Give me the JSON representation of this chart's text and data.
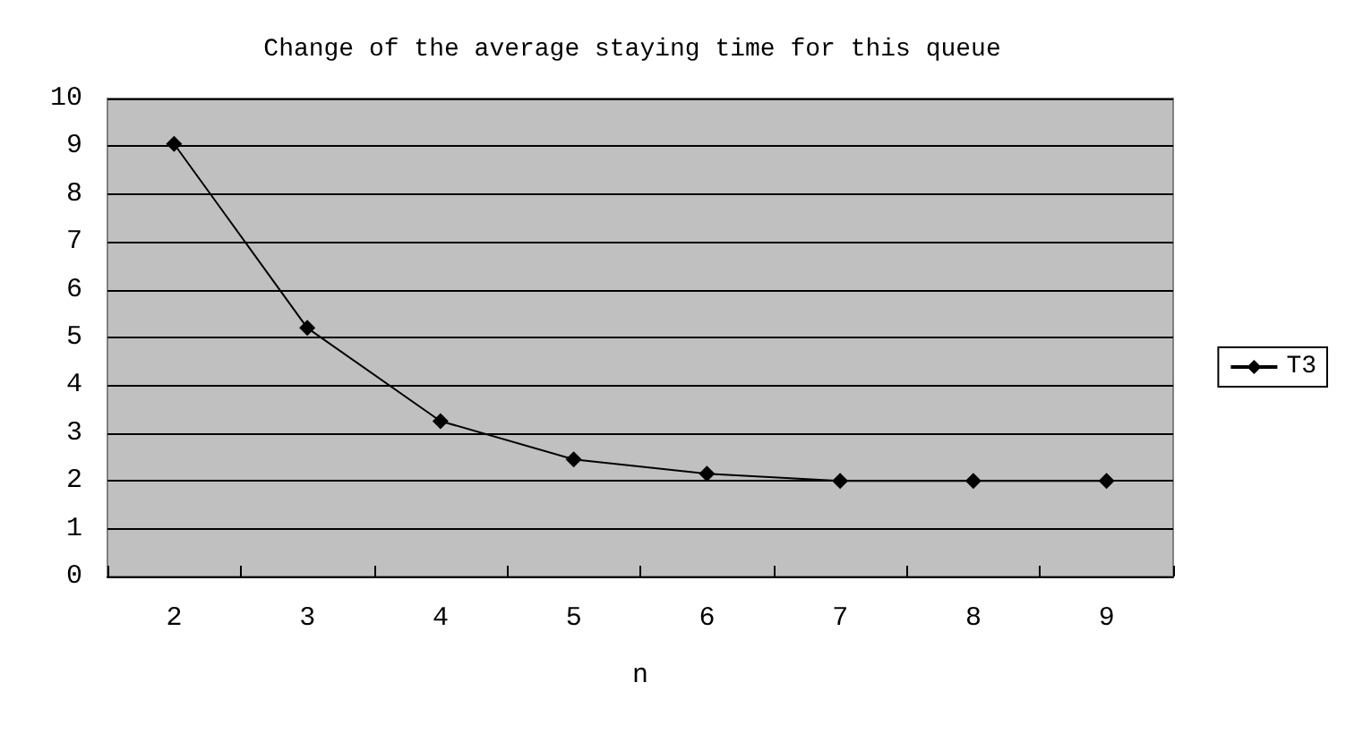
{
  "chart_data": {
    "type": "line",
    "title": "Change of the average staying time for this queue",
    "xlabel": "n",
    "categories": [
      "2",
      "3",
      "4",
      "5",
      "6",
      "7",
      "8",
      "9"
    ],
    "series": [
      {
        "name": "T3",
        "color": "#000000",
        "values": [
          9.05,
          5.2,
          3.25,
          2.45,
          2.15,
          2.0,
          2.0,
          2.0
        ]
      }
    ],
    "ylim": [
      0,
      10
    ],
    "yticks": [
      0,
      1,
      2,
      3,
      4,
      5,
      6,
      7,
      8,
      9,
      10
    ],
    "grid": "y",
    "legend": "right",
    "marker": "diamond",
    "line_style": "solid"
  }
}
